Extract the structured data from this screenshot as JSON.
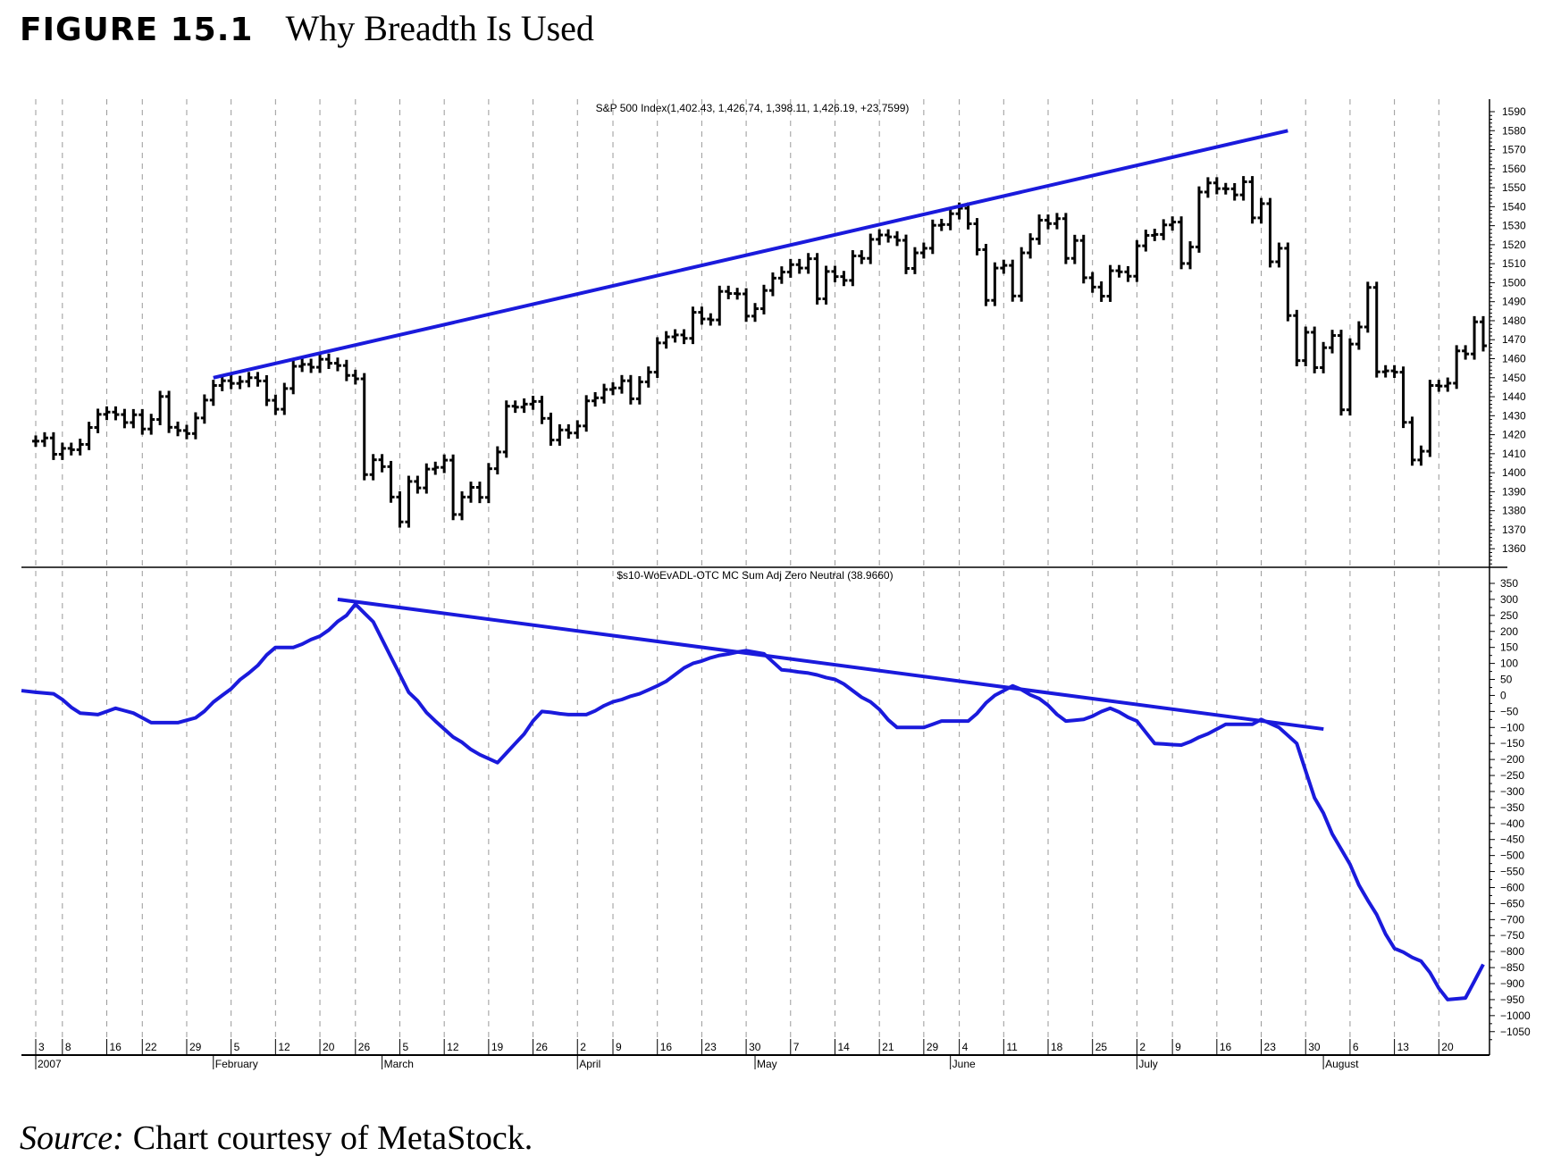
{
  "figure": {
    "number": "FIGURE 15.1",
    "title": "Why Breadth Is Used",
    "source_label": "Source:",
    "source_text": "Chart courtesy of MetaStock."
  },
  "colors": {
    "price": "#000000",
    "indicator": "#1a1adc",
    "trendline": "#1a1adc",
    "grid": "#999999"
  },
  "chart_data": [
    {
      "type": "bar",
      "title": "S&P 500 Index(1,402.43, 1,426.74, 1,398.11, 1,426.19, +23.7599)",
      "year": "2007",
      "ylim": [
        1355,
        1595
      ],
      "yticks": [
        1590,
        1580,
        1570,
        1560,
        1550,
        1540,
        1530,
        1520,
        1510,
        1500,
        1490,
        1480,
        1470,
        1460,
        1450,
        1440,
        1430,
        1420,
        1410,
        1400,
        1390,
        1380,
        1370,
        1360
      ],
      "grid": "vertical dashed weekly",
      "dates": [
        "01-03",
        "01-04",
        "01-05",
        "01-08",
        "01-09",
        "01-10",
        "01-11",
        "01-12",
        "01-16",
        "01-17",
        "01-18",
        "01-19",
        "01-22",
        "01-23",
        "01-24",
        "01-25",
        "01-26",
        "01-29",
        "01-30",
        "01-31",
        "02-01",
        "02-02",
        "02-05",
        "02-06",
        "02-07",
        "02-08",
        "02-09",
        "02-12",
        "02-13",
        "02-14",
        "02-15",
        "02-16",
        "02-20",
        "02-21",
        "02-22",
        "02-23",
        "02-26",
        "02-27",
        "02-28",
        "03-01",
        "03-02",
        "03-05",
        "03-06",
        "03-07",
        "03-08",
        "03-09",
        "03-12",
        "03-13",
        "03-14",
        "03-15",
        "03-16",
        "03-19",
        "03-20",
        "03-21",
        "03-22",
        "03-23",
        "03-26",
        "03-27",
        "03-28",
        "03-29",
        "03-30",
        "04-02",
        "04-03",
        "04-04",
        "04-05",
        "04-09",
        "04-10",
        "04-11",
        "04-12",
        "04-13",
        "04-16",
        "04-17",
        "04-18",
        "04-19",
        "04-20",
        "04-23",
        "04-24",
        "04-25",
        "04-26",
        "04-27",
        "04-30",
        "05-01",
        "05-02",
        "05-03",
        "05-04",
        "05-07",
        "05-08",
        "05-09",
        "05-10",
        "05-11",
        "05-14",
        "05-15",
        "05-16",
        "05-17",
        "05-18",
        "05-21",
        "05-22",
        "05-23",
        "05-24",
        "05-25",
        "05-29",
        "05-30",
        "05-31",
        "06-01",
        "06-04",
        "06-05",
        "06-06",
        "06-07",
        "06-08",
        "06-11",
        "06-12",
        "06-13",
        "06-14",
        "06-15",
        "06-18",
        "06-19",
        "06-20",
        "06-21",
        "06-22",
        "06-25",
        "06-26",
        "06-27",
        "06-28",
        "06-29",
        "07-02",
        "07-03",
        "07-05",
        "07-06",
        "07-09",
        "07-10",
        "07-11",
        "07-12",
        "07-13",
        "07-16",
        "07-17",
        "07-18",
        "07-19",
        "07-20",
        "07-23",
        "07-24",
        "07-25",
        "07-26",
        "07-27",
        "07-30",
        "07-31",
        "08-01",
        "08-02",
        "08-03",
        "08-06",
        "08-07",
        "08-08",
        "08-09",
        "08-10",
        "08-13",
        "08-14",
        "08-15",
        "08-16",
        "08-17",
        "08-20",
        "08-21",
        "08-22",
        "08-23",
        "08-24",
        "08-27"
      ],
      "close": [
        1416.6,
        1418.3,
        1409.7,
        1412.8,
        1412.1,
        1414.9,
        1423.8,
        1430.7,
        1431.9,
        1430.6,
        1426.4,
        1430.5,
        1423.0,
        1428.0,
        1440.1,
        1423.9,
        1422.2,
        1420.6,
        1428.8,
        1438.2,
        1445.9,
        1448.4,
        1447.0,
        1448.0,
        1450.0,
        1448.3,
        1438.1,
        1433.4,
        1444.3,
        1456.0,
        1457.0,
        1455.5,
        1459.7,
        1457.6,
        1456.4,
        1451.2,
        1449.4,
        1399.0,
        1406.8,
        1403.2,
        1387.2,
        1374.1,
        1395.4,
        1392.0,
        1401.9,
        1402.8,
        1406.6,
        1378.0,
        1387.2,
        1392.3,
        1387.0,
        1402.1,
        1410.9,
        1435.0,
        1434.5,
        1436.1,
        1437.5,
        1428.6,
        1417.2,
        1422.5,
        1420.9,
        1424.6,
        1437.8,
        1439.4,
        1443.8,
        1444.6,
        1448.4,
        1438.9,
        1447.8,
        1452.9,
        1468.3,
        1471.5,
        1472.5,
        1470.7,
        1484.4,
        1480.9,
        1480.4,
        1495.4,
        1494.3,
        1494.1,
        1482.4,
        1486.3,
        1495.9,
        1502.4,
        1505.6,
        1509.5,
        1507.7,
        1512.6,
        1491.5,
        1505.9,
        1503.2,
        1501.2,
        1514.1,
        1512.8,
        1522.8,
        1525.1,
        1524.1,
        1522.3,
        1507.5,
        1515.7,
        1518.1,
        1530.2,
        1530.6,
        1536.3,
        1539.2,
        1531.0,
        1517.4,
        1490.7,
        1507.7,
        1509.1,
        1493.0,
        1515.7,
        1523.0,
        1532.9,
        1531.1,
        1533.7,
        1512.8,
        1522.2,
        1502.6,
        1497.7,
        1492.9,
        1506.3,
        1505.7,
        1503.4,
        1519.4,
        1524.9,
        1525.4,
        1530.4,
        1531.9,
        1510.1,
        1518.8,
        1547.7,
        1552.5,
        1549.5,
        1549.4,
        1546.2,
        1553.1,
        1534.1,
        1541.6,
        1511.0,
        1518.1,
        1482.7,
        1459.0,
        1473.9,
        1455.3,
        1465.8,
        1472.2,
        1433.1,
        1467.7,
        1476.7,
        1497.5,
        1453.1,
        1453.6,
        1452.9,
        1426.5,
        1406.7,
        1411.3,
        1445.9,
        1445.6,
        1447.1,
        1464.1,
        1462.5,
        1479.4,
        1466.8
      ],
      "trendline": {
        "from": [
          "02-01",
          1450
        ],
        "to": [
          "07-26",
          1580
        ]
      }
    },
    {
      "type": "line",
      "title": "$s10-WoEvADL-OTC MC Sum Adj Zero Neutral (38.9660)",
      "ylim": [
        -1075,
        375
      ],
      "yticks": [
        350,
        300,
        250,
        200,
        150,
        100,
        50,
        0,
        -50,
        -100,
        -150,
        -200,
        -250,
        -300,
        -350,
        -400,
        -450,
        -500,
        -550,
        -600,
        -650,
        -700,
        -750,
        -800,
        -850,
        -900,
        -950,
        -1000,
        -1050
      ],
      "points": [
        [
          "01-03",
          10
        ],
        [
          "01-05",
          5
        ],
        [
          "01-10",
          -55
        ],
        [
          "01-12",
          -60
        ],
        [
          "01-17",
          -40
        ],
        [
          "01-19",
          -55
        ],
        [
          "01-23",
          -85
        ],
        [
          "01-26",
          -85
        ],
        [
          "01-30",
          -70
        ],
        [
          "02-02",
          0
        ],
        [
          "02-07",
          70
        ],
        [
          "02-12",
          150
        ],
        [
          "02-14",
          150
        ],
        [
          "02-20",
          185
        ],
        [
          "02-23",
          250
        ],
        [
          "02-26",
          285
        ],
        [
          "02-28",
          230
        ],
        [
          "03-02",
          120
        ],
        [
          "03-06",
          10
        ],
        [
          "03-09",
          -80
        ],
        [
          "03-13",
          -130
        ],
        [
          "03-16",
          -185
        ],
        [
          "03-20",
          -210
        ],
        [
          "03-22",
          -150
        ],
        [
          "03-27",
          -50
        ],
        [
          "03-30",
          -60
        ],
        [
          "04-03",
          -60
        ],
        [
          "04-09",
          -20
        ],
        [
          "04-12",
          5
        ],
        [
          "04-16",
          30
        ],
        [
          "04-20",
          100
        ],
        [
          "04-25",
          125
        ],
        [
          "04-30",
          140
        ],
        [
          "05-02",
          130
        ],
        [
          "05-04",
          80
        ],
        [
          "05-09",
          70
        ],
        [
          "05-14",
          50
        ],
        [
          "05-18",
          -20
        ],
        [
          "05-23",
          -100
        ],
        [
          "05-29",
          -100
        ],
        [
          "05-31",
          -80
        ],
        [
          "06-05",
          -80
        ],
        [
          "06-08",
          0
        ],
        [
          "06-12",
          30
        ],
        [
          "06-15",
          -10
        ],
        [
          "06-20",
          -80
        ],
        [
          "06-22",
          -75
        ],
        [
          "06-27",
          -40
        ],
        [
          "07-02",
          -80
        ],
        [
          "07-05",
          -150
        ],
        [
          "07-10",
          -155
        ],
        [
          "07-13",
          -120
        ],
        [
          "07-17",
          -90
        ],
        [
          "07-20",
          -90
        ],
        [
          "07-23",
          -75
        ],
        [
          "07-25",
          -100
        ],
        [
          "07-27",
          -150
        ],
        [
          "07-31",
          -320
        ],
        [
          "08-03",
          -480
        ],
        [
          "08-08",
          -640
        ],
        [
          "08-13",
          -790
        ],
        [
          "08-16",
          -830
        ],
        [
          "08-21",
          -950
        ],
        [
          "08-23",
          -945
        ],
        [
          "08-27",
          -840
        ]
      ],
      "trendline": {
        "from": [
          "02-22",
          300
        ],
        "to": [
          "07-27",
          -105
        ]
      }
    }
  ],
  "x_axis": {
    "day_ticks": [
      [
        "01-03",
        "3"
      ],
      [
        "01-08",
        "8"
      ],
      [
        "01-16",
        "16"
      ],
      [
        "01-22",
        "22"
      ],
      [
        "01-29",
        "29"
      ],
      [
        "02-05",
        "5"
      ],
      [
        "02-12",
        "12"
      ],
      [
        "02-20",
        "20"
      ],
      [
        "02-26",
        "26"
      ],
      [
        "03-05",
        "5"
      ],
      [
        "03-12",
        "12"
      ],
      [
        "03-19",
        "19"
      ],
      [
        "03-26",
        "26"
      ],
      [
        "04-02",
        "2"
      ],
      [
        "04-09",
        "9"
      ],
      [
        "04-16",
        "16"
      ],
      [
        "04-23",
        "23"
      ],
      [
        "04-30",
        "30"
      ],
      [
        "05-07",
        "7"
      ],
      [
        "05-14",
        "14"
      ],
      [
        "05-21",
        "21"
      ],
      [
        "05-29",
        "29"
      ],
      [
        "06-04",
        "4"
      ],
      [
        "06-11",
        "11"
      ],
      [
        "06-18",
        "18"
      ],
      [
        "06-25",
        "25"
      ],
      [
        "07-02",
        "2"
      ],
      [
        "07-09",
        "9"
      ],
      [
        "07-16",
        "16"
      ],
      [
        "07-23",
        "23"
      ],
      [
        "07-30",
        "30"
      ],
      [
        "08-06",
        "6"
      ],
      [
        "08-13",
        "13"
      ],
      [
        "08-20",
        "20"
      ]
    ],
    "month_ticks": [
      [
        "01-03",
        "2007"
      ],
      [
        "02-01",
        "February"
      ],
      [
        "03-01",
        "March"
      ],
      [
        "04-02",
        "April"
      ],
      [
        "05-01",
        "May"
      ],
      [
        "06-01",
        "June"
      ],
      [
        "07-02",
        "July"
      ],
      [
        "08-01",
        "August"
      ]
    ]
  }
}
